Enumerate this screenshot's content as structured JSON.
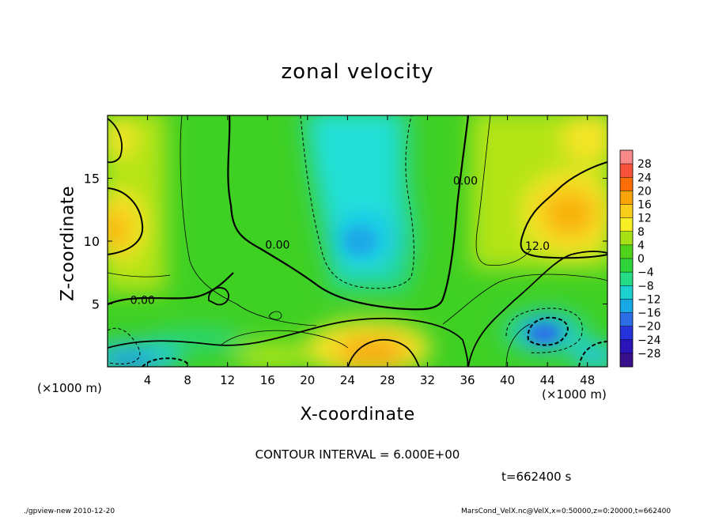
{
  "chart_data": {
    "type": "heatmap",
    "title": "zonal velocity",
    "xlabel": "X-coordinate",
    "ylabel": "Z-coordinate",
    "x_unit_left": "(×1000 m)",
    "x_unit_right": "(×1000 m)",
    "x_ticks": [
      "4",
      "8",
      "12",
      "16",
      "20",
      "24",
      "28",
      "32",
      "36",
      "40",
      "44",
      "48"
    ],
    "x_tick_values": [
      4,
      8,
      12,
      16,
      20,
      24,
      28,
      32,
      36,
      40,
      44,
      48
    ],
    "xlim": [
      0,
      50
    ],
    "y_ticks": [
      "5",
      "10",
      "15"
    ],
    "y_tick_values": [
      5,
      10,
      15
    ],
    "ylim": [
      0,
      20
    ],
    "colorbar": {
      "labels": [
        "28",
        "24",
        "20",
        "16",
        "12",
        "8",
        "4",
        "0",
        "−4",
        "−8",
        "−12",
        "−16",
        "−20",
        "−24",
        "−28"
      ],
      "range": [
        -30,
        30
      ],
      "colors": [
        "#f98a8a",
        "#f6523a",
        "#fb6e05",
        "#f9a50a",
        "#f8cd1c",
        "#f7ee24",
        "#a7e216",
        "#50d21b",
        "#2fd43a",
        "#24dc83",
        "#1cd0d0",
        "#18a8e6",
        "#2b6ee8",
        "#2633dc",
        "#2a14b8",
        "#3a0f8c"
      ]
    },
    "contour_labels": [
      {
        "text": "0.00",
        "x": 17,
        "z": 9.4
      },
      {
        "text": "0.00",
        "x": 3.5,
        "z": 5
      },
      {
        "text": "0.00",
        "x": 35.8,
        "z": 14.5
      },
      {
        "text": "12.0",
        "x": 43,
        "z": 9.3
      }
    ],
    "regions": [
      {
        "label": "westward core (cyan)",
        "x": [
          20,
          31
        ],
        "z": [
          6,
          20
        ],
        "value": -8
      },
      {
        "label": "eastward upper-left (orange)",
        "x": [
          0,
          3
        ],
        "z": [
          8,
          14
        ],
        "value": 14
      },
      {
        "label": "eastward upper-right (orange)",
        "x": [
          42,
          50
        ],
        "z": [
          8,
          16
        ],
        "value": 14
      },
      {
        "label": "eastward low (orange)",
        "x": [
          23,
          30
        ],
        "z": [
          0,
          2.5
        ],
        "value": 14
      },
      {
        "label": "westward low-right (blue)",
        "x": [
          41,
          46
        ],
        "z": [
          1.5,
          4
        ],
        "value": -14
      },
      {
        "label": "westward low-left (blue)",
        "x": [
          0,
          8
        ],
        "z": [
          0,
          1.5
        ],
        "value": -14
      }
    ]
  },
  "contour_interval": "CONTOUR INTERVAL = 6.000E+00",
  "time": "t=662400 s",
  "footer": {
    "left": "./gpview-new   2010-12-20",
    "right": "MarsCond_VelX.nc@VelX,x=0:50000,z=0:20000,t=662400"
  }
}
